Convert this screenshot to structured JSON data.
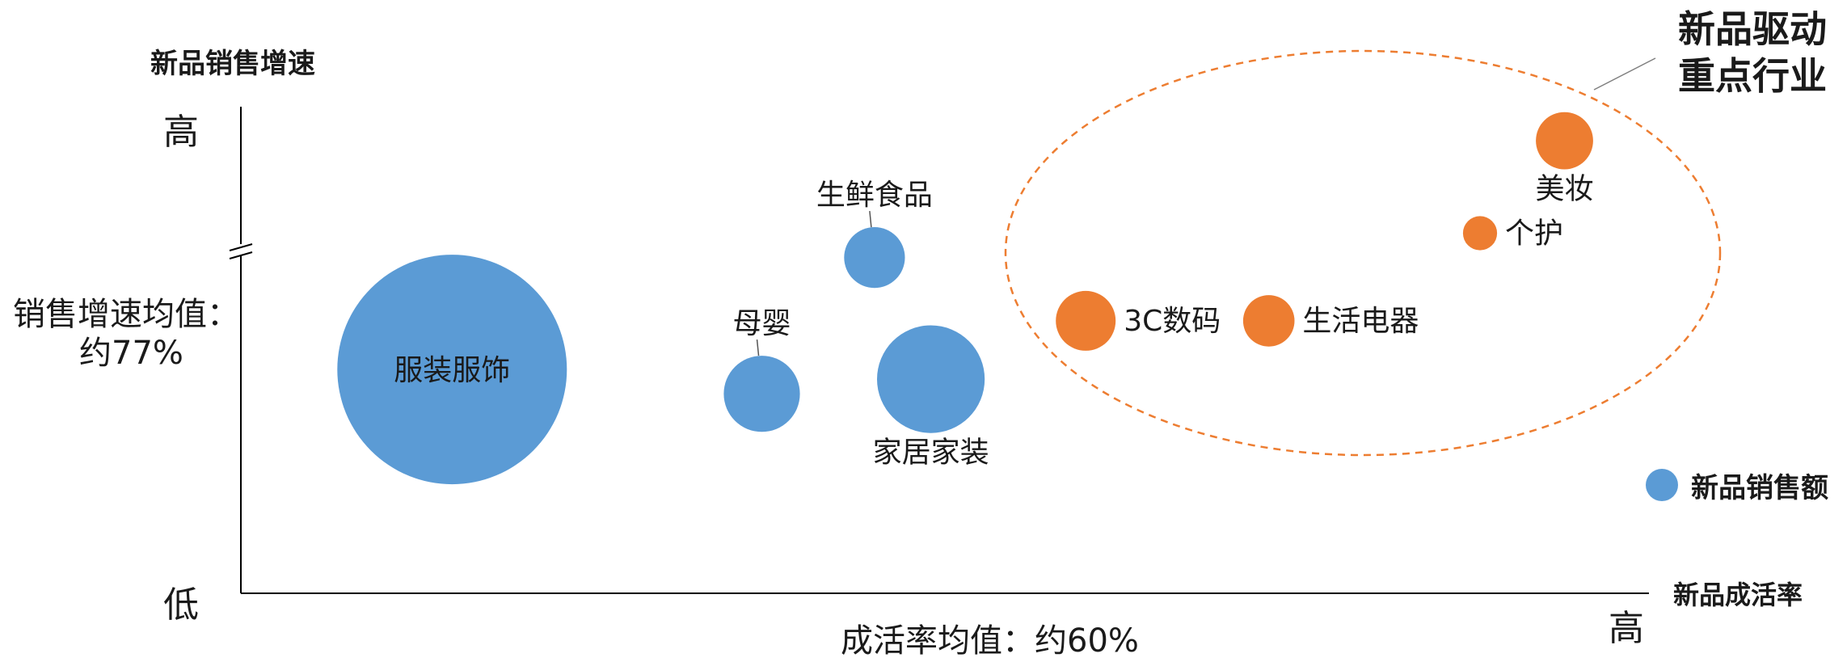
{
  "chart_data": {
    "type": "bubble",
    "y_axis": {
      "title": "新品销售增速",
      "high_label": "高",
      "low_label": "低",
      "mean_label_line1": "销售增速均值：",
      "mean_label_line2": "约77%"
    },
    "x_axis": {
      "title": "新品成活率",
      "high_label": "高",
      "mean_label": "成活率均值：约60%"
    },
    "legend": {
      "label": "新品销售额",
      "placement": "right",
      "color": "#5B9BD5"
    },
    "highlight": {
      "label_line1": "新品驱动",
      "label_line2": "重点行业",
      "color": "#ED7D31"
    },
    "colors": {
      "normal": "#5B9BD5",
      "highlight": "#ED7D31",
      "axis": "#000000"
    },
    "scale_note": "x and y are relative positions on an unlabeled 0-100 scale (no numeric ticks shown); size is relative sales volume",
    "series": [
      {
        "name": "服装服饰",
        "x": 15,
        "y": 46,
        "size": 100,
        "group": "normal",
        "label_pos": "inside"
      },
      {
        "name": "母婴",
        "x": 37,
        "y": 41,
        "size": 11,
        "group": "normal",
        "label_pos": "top"
      },
      {
        "name": "生鲜食品",
        "x": 45,
        "y": 69,
        "size": 7,
        "group": "normal",
        "label_pos": "top"
      },
      {
        "name": "家居家装",
        "x": 49,
        "y": 44,
        "size": 22,
        "group": "normal",
        "label_pos": "bottom"
      },
      {
        "name": "3C数码",
        "x": 60,
        "y": 56,
        "size": 6.8,
        "group": "highlight",
        "label_pos": "right"
      },
      {
        "name": "生活电器",
        "x": 73,
        "y": 56,
        "size": 5,
        "group": "highlight",
        "label_pos": "right"
      },
      {
        "name": "个护",
        "x": 88,
        "y": 74,
        "size": 2.2,
        "group": "highlight",
        "label_pos": "right"
      },
      {
        "name": "美妆",
        "x": 94,
        "y": 93,
        "size": 6.2,
        "group": "highlight",
        "label_pos": "bottom"
      }
    ]
  }
}
